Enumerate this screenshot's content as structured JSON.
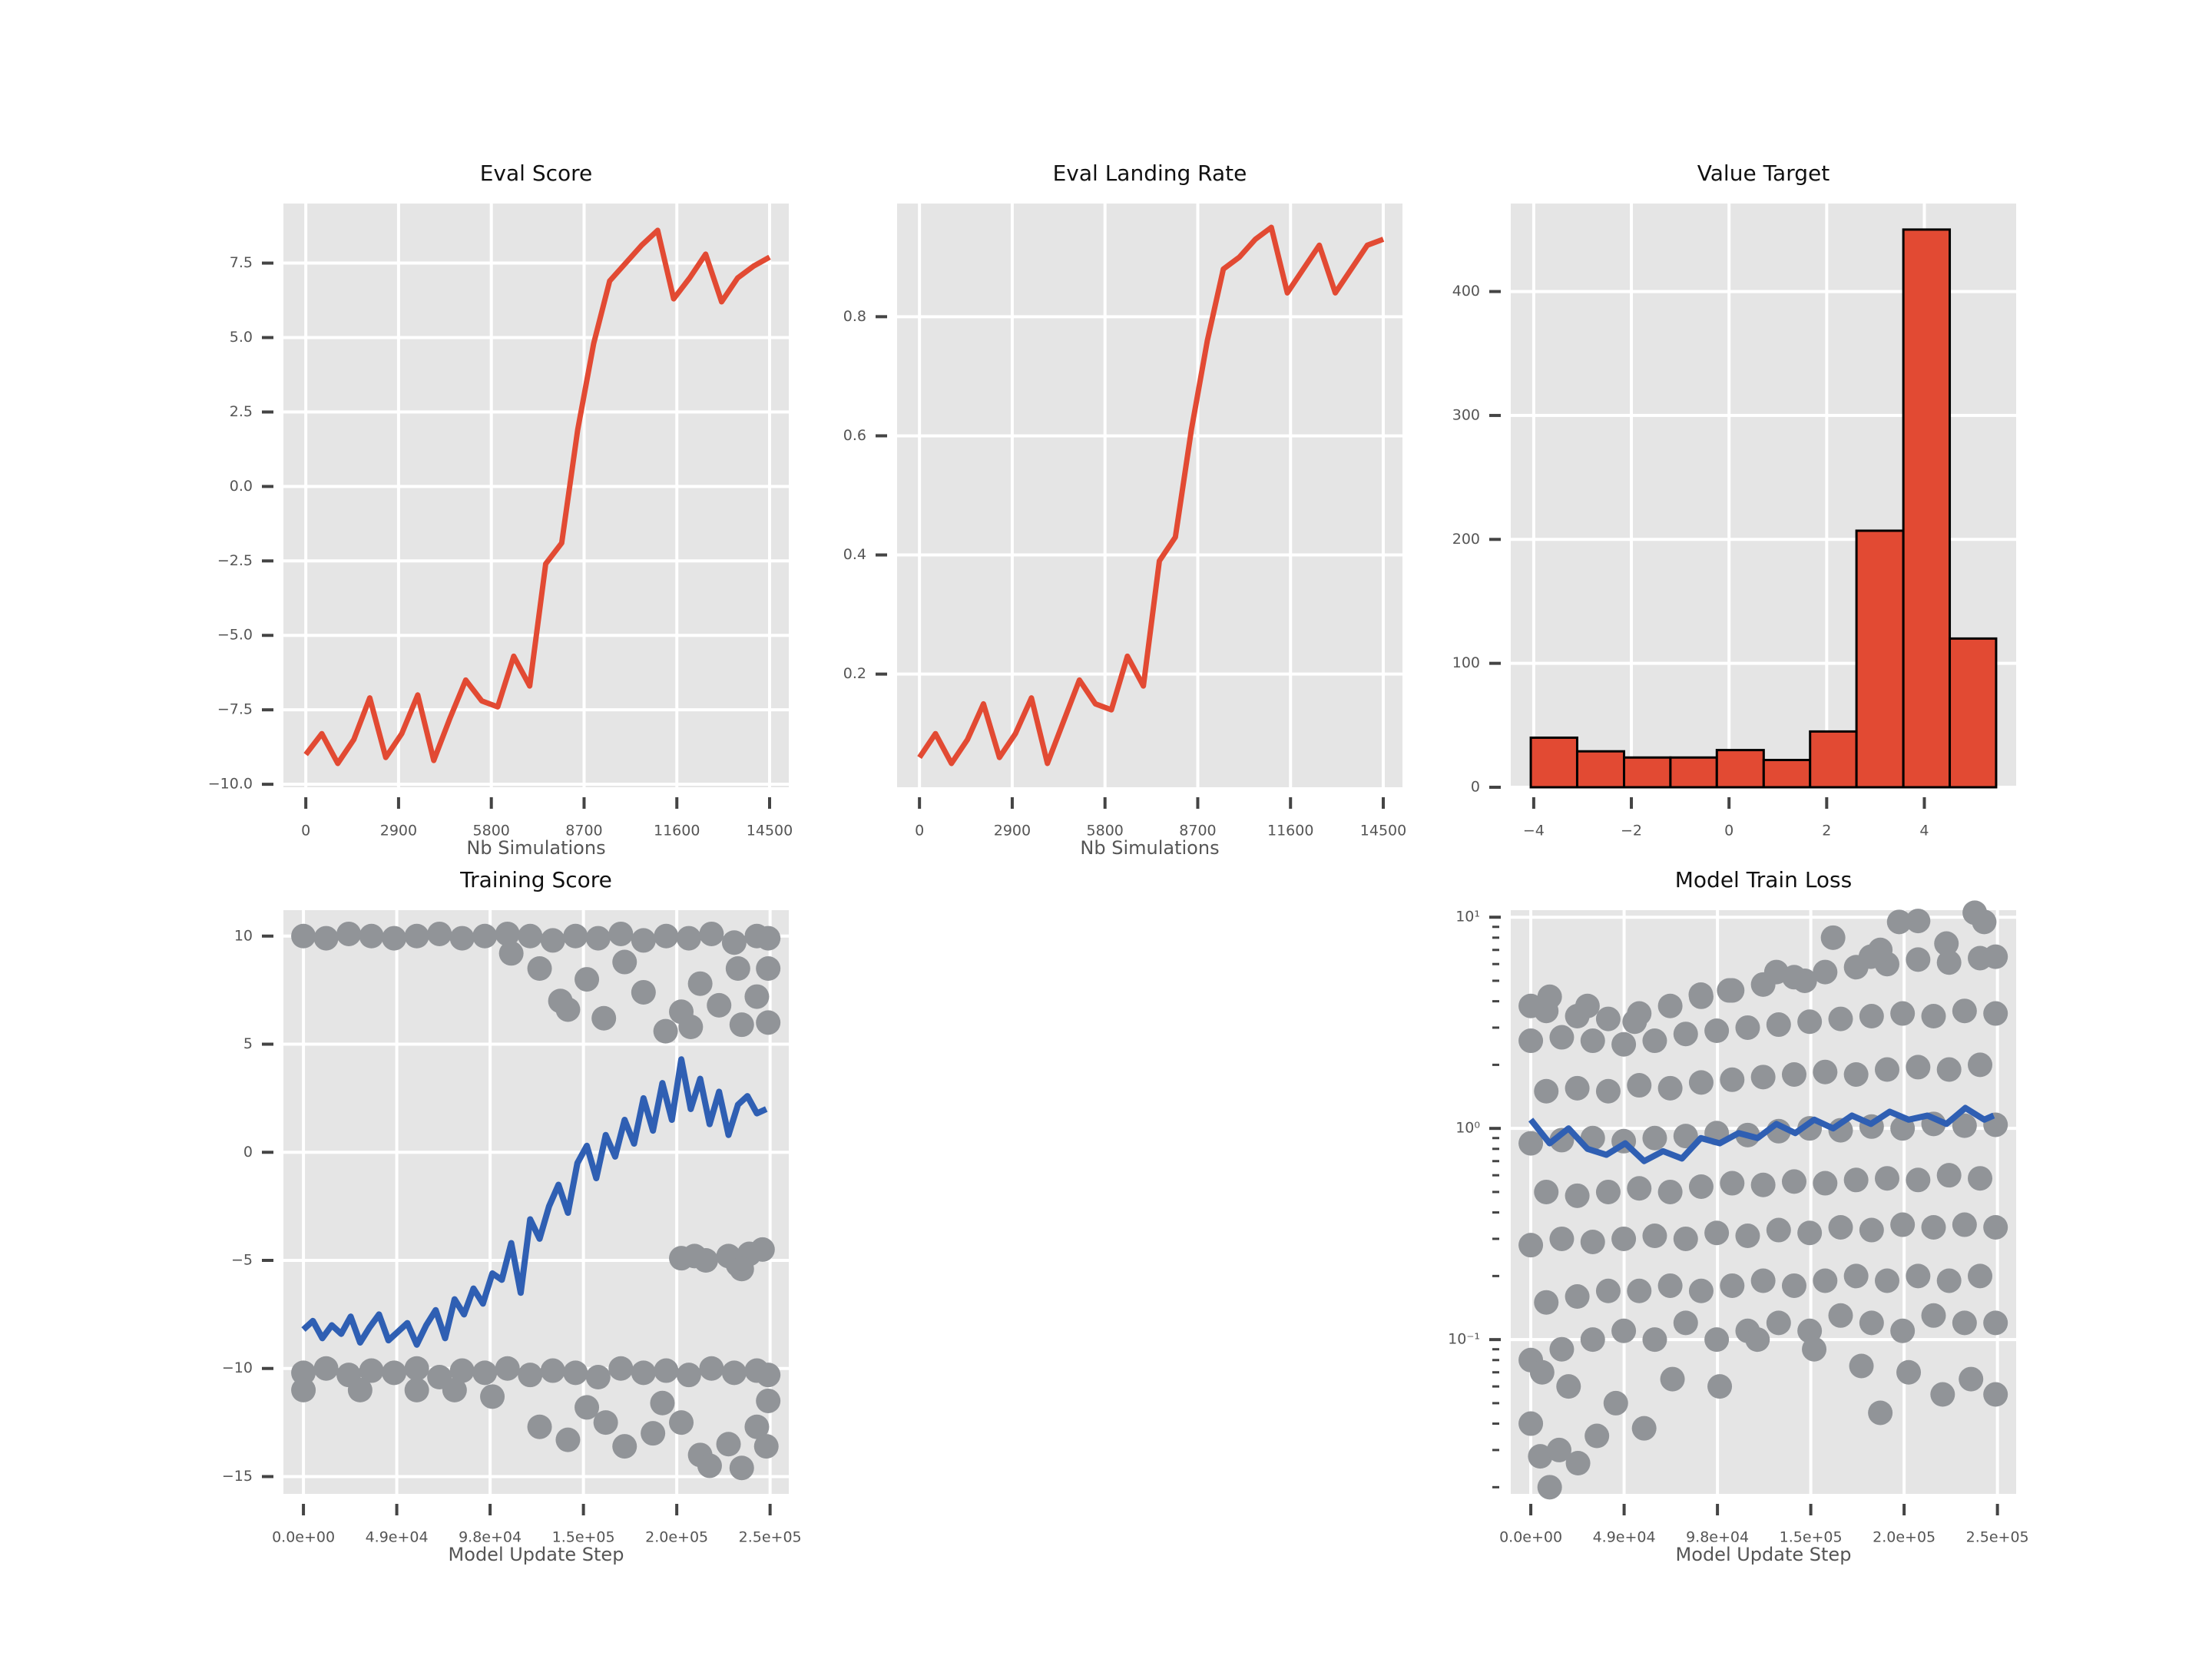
{
  "chart_data": [
    {
      "type": "line",
      "title": "Eval Score",
      "xlabel": "Nb Simulations",
      "color": "#e24a33",
      "grid": true,
      "x": [
        0,
        500,
        1000,
        1500,
        2000,
        2500,
        3000,
        3500,
        4000,
        4500,
        5000,
        5500,
        6000,
        6500,
        7000,
        7500,
        8000,
        8500,
        9000,
        9500,
        10000,
        10500,
        11000,
        11500,
        12000,
        12500,
        13000,
        13500,
        14000,
        14500
      ],
      "values": [
        -9.0,
        -8.3,
        -9.3,
        -8.5,
        -7.1,
        -9.1,
        -8.3,
        -7.0,
        -9.2,
        -7.8,
        -6.5,
        -7.2,
        -7.4,
        -5.7,
        -6.7,
        -2.6,
        -1.9,
        1.9,
        4.8,
        6.9,
        7.5,
        8.1,
        8.6,
        6.3,
        7.0,
        7.8,
        6.2,
        7.0,
        7.4,
        7.7
      ],
      "xlim": [
        -700,
        15100
      ],
      "ylim": [
        -10.1,
        9.5
      ],
      "xticks": [
        0,
        2900,
        5800,
        8700,
        11600,
        14500
      ],
      "yticks": [
        {
          "value": -10,
          "label": "−10.0"
        },
        {
          "value": -7.5,
          "label": "−7.5"
        },
        {
          "value": -5,
          "label": "−5.0"
        },
        {
          "value": -2.5,
          "label": "−2.5"
        },
        {
          "value": 0,
          "label": "0.0"
        },
        2.5,
        {
          "value": 5,
          "label": "5.0"
        },
        7.5
      ]
    },
    {
      "type": "line",
      "title": "Eval Landing Rate",
      "xlabel": "Nb Simulations",
      "color": "#e24a33",
      "grid": true,
      "x": [
        0,
        500,
        1000,
        1500,
        2000,
        2500,
        3000,
        3500,
        4000,
        4500,
        5000,
        5500,
        6000,
        6500,
        7000,
        7500,
        8000,
        8500,
        9000,
        9500,
        10000,
        10500,
        11000,
        11500,
        12000,
        12500,
        13000,
        13500,
        14000,
        14500
      ],
      "values": [
        0.06,
        0.1,
        0.05,
        0.09,
        0.15,
        0.06,
        0.1,
        0.16,
        0.05,
        0.12,
        0.19,
        0.15,
        0.14,
        0.23,
        0.18,
        0.39,
        0.43,
        0.61,
        0.76,
        0.88,
        0.9,
        0.93,
        0.95,
        0.84,
        0.88,
        0.92,
        0.84,
        0.88,
        0.92,
        0.93
      ],
      "xlim": [
        -700,
        15100
      ],
      "ylim": [
        0.01,
        0.99
      ],
      "xticks": [
        0,
        2900,
        5800,
        8700,
        11600,
        14500
      ],
      "yticks": [
        0.2,
        0.4,
        0.6,
        0.8
      ]
    },
    {
      "type": "histogram",
      "title": "Value Target",
      "color": "#e24a33",
      "edgecolor": "#000000",
      "grid": true,
      "bins": [
        -4.06,
        -3.11,
        -2.15,
        -1.2,
        -0.25,
        0.71,
        1.66,
        2.61,
        3.57,
        4.52,
        5.47
      ],
      "values": [
        40,
        29,
        24,
        24,
        30,
        22,
        45,
        207,
        450,
        120
      ],
      "xlim": [
        -4.47,
        5.88
      ],
      "ylim": [
        0,
        471
      ],
      "xticks": [
        {
          "value": -4,
          "label": "−4"
        },
        {
          "value": -2,
          "label": "−2"
        },
        0,
        2,
        4
      ],
      "yticks": [
        0,
        100,
        200,
        300,
        400
      ]
    },
    {
      "type": "scatter",
      "title": "Training Score",
      "xlabel": "Model Update Step",
      "grid": true,
      "series": [
        {
          "type": "scatter",
          "color": "#919498",
          "x": [
            0,
            12000,
            24000,
            36000,
            48000,
            60000,
            72000,
            84000,
            96000,
            108000,
            120000,
            132000,
            144000,
            156000,
            168000,
            180000,
            192000,
            204000,
            216000,
            228000,
            240000,
            246000,
            110000,
            125000,
            136000,
            150000,
            159000,
            170000,
            180000,
            191700,
            200000,
            210000,
            220000,
            230000,
            240000,
            246000,
            246000,
            140000,
            205000,
            232000,
            0,
            12000,
            24000,
            36000,
            48000,
            60000,
            72000,
            84000,
            96000,
            108000,
            120000,
            132000,
            144000,
            156000,
            168000,
            180000,
            192000,
            204000,
            216000,
            228000,
            240000,
            246000,
            0,
            30000,
            60000,
            80000,
            100000,
            125000,
            140000,
            150000,
            160000,
            170000,
            185000,
            190000,
            200000,
            210000,
            215000,
            225000,
            232000,
            240000,
            245000,
            246000,
            200000,
            207000,
            213000,
            225000,
            230000,
            236000,
            243000,
            232000
          ],
          "values": [
            10,
            9.9,
            10.1,
            10,
            9.9,
            10,
            10.1,
            9.9,
            10,
            10.1,
            10,
            9.8,
            10,
            9.9,
            10.1,
            9.8,
            10,
            9.9,
            10.1,
            9.7,
            10,
            9.9,
            9.2,
            8.5,
            7.0,
            8.0,
            6.2,
            8.8,
            7.4,
            5.6,
            6.5,
            7.8,
            6.8,
            8.5,
            7.2,
            6.0,
            8.5,
            6.6,
            5.8,
            5.9,
            -10.2,
            -10,
            -10.3,
            -10.1,
            -10.2,
            -10,
            -10.4,
            -10.1,
            -10.2,
            -10,
            -10.3,
            -10.1,
            -10.2,
            -10.4,
            -10,
            -10.2,
            -10.1,
            -10.3,
            -10,
            -10.2,
            -10.1,
            -10.3,
            -11,
            -11,
            -11,
            -11,
            -11.3,
            -12.7,
            -13.3,
            -11.8,
            -12.5,
            -13.6,
            -13,
            -11.6,
            -12.5,
            -14,
            -14.5,
            -13.5,
            -14.6,
            -12.7,
            -13.6,
            -11.5,
            -4.9,
            -4.8,
            -5.0,
            -4.8,
            -5.2,
            -4.7,
            -4.5,
            -5.4
          ]
        },
        {
          "type": "line",
          "color": "#2f5fb3",
          "x": [
            0,
            5000,
            10000,
            15000,
            20000,
            25000,
            30000,
            35000,
            40000,
            45000,
            50000,
            55000,
            60000,
            65000,
            70000,
            75000,
            80000,
            85000,
            90000,
            95000,
            100000,
            105000,
            110000,
            115000,
            120000,
            125000,
            130000,
            135000,
            140000,
            145000,
            150000,
            155000,
            160000,
            165000,
            170000,
            175000,
            180000,
            185000,
            190000,
            195000,
            200000,
            205000,
            210000,
            215000,
            220000,
            225000,
            230000,
            235000,
            240000,
            245000
          ],
          "values": [
            -8.2,
            -7.8,
            -8.6,
            -8.0,
            -8.4,
            -7.6,
            -8.8,
            -8.1,
            -7.5,
            -8.7,
            -8.3,
            -7.9,
            -8.9,
            -8.0,
            -7.3,
            -8.6,
            -6.8,
            -7.5,
            -6.3,
            -7.0,
            -5.6,
            -5.9,
            -4.2,
            -6.5,
            -3.1,
            -4.0,
            -2.5,
            -1.5,
            -2.8,
            -0.5,
            0.3,
            -1.2,
            0.8,
            -0.2,
            1.5,
            0.4,
            2.5,
            1.0,
            3.2,
            1.5,
            4.3,
            2.0,
            3.4,
            1.3,
            2.8,
            0.8,
            2.2,
            2.6,
            1.8,
            2.0
          ]
        }
      ],
      "xlim": [
        -10600,
        256900
      ],
      "ylim": [
        -15.8,
        11.2
      ],
      "xticks": [
        {
          "value": 0,
          "label": "0.0e+00"
        },
        {
          "value": 49400,
          "label": "4.9e+04"
        },
        {
          "value": 98800,
          "label": "9.8e+04"
        },
        {
          "value": 148200,
          "label": "1.5e+05"
        },
        {
          "value": 197600,
          "label": "2.0e+05"
        },
        {
          "value": 247000,
          "label": "2.5e+05"
        }
      ],
      "yticks": [
        {
          "value": -15,
          "label": "−15"
        },
        {
          "value": -10,
          "label": "−10"
        },
        {
          "value": -5,
          "label": "−5"
        },
        0,
        5,
        10
      ]
    },
    {
      "type": "scatter",
      "title": "Model Train Loss",
      "xlabel": "Model Update Step",
      "grid": true,
      "ylog": true,
      "series": [
        {
          "type": "scatter",
          "color": "#919498",
          "x": [
            0,
            16400,
            32800,
            49200,
            65600,
            82000,
            98400,
            114800,
            131200,
            147600,
            164000,
            180400,
            196800,
            213200,
            229600,
            246000,
            8200,
            24600,
            41000,
            57400,
            73800,
            90200,
            106600,
            123000,
            139400,
            155800,
            172200,
            188600,
            205000,
            221400,
            237800,
            0,
            16400,
            32800,
            49200,
            65600,
            82000,
            98400,
            114800,
            131200,
            147600,
            164000,
            180400,
            196800,
            213200,
            229600,
            246000,
            8200,
            24600,
            41000,
            57400,
            73800,
            90200,
            106600,
            123000,
            139400,
            155800,
            172200,
            188600,
            205000,
            221400,
            237800,
            0,
            16400,
            32800,
            49200,
            65600,
            82000,
            98400,
            114800,
            131200,
            147600,
            164000,
            180400,
            196800,
            213200,
            229600,
            246000,
            8200,
            24600,
            41000,
            57400,
            73800,
            90200,
            106600,
            123000,
            139400,
            155800,
            172200,
            188600,
            205000,
            221400,
            237800,
            0,
            16400,
            32800,
            49200,
            65600,
            82000,
            98400,
            114800,
            131200,
            147600,
            164000,
            180400,
            196800,
            213200,
            229600,
            246000,
            8200,
            24600,
            41000,
            57400,
            73800,
            90200,
            106600,
            123000,
            139400,
            155800,
            172200,
            188600,
            205000,
            221400,
            237800,
            0,
            5000,
            10000,
            15000,
            25000,
            35000,
            45000,
            60000,
            75000,
            100000,
            150000,
            185000,
            175000,
            200000,
            218000,
            233000,
            246000,
            120000,
            6000,
            20000,
            0,
            10000,
            30000,
            55000,
            90000,
            105000,
            130000,
            145000,
            160000,
            180000,
            195000,
            205000,
            220000,
            235000,
            240000,
            246000,
            185000
          ],
          "values": [
            0.08,
            0.09,
            0.1,
            0.11,
            0.1,
            0.12,
            0.1,
            0.11,
            0.12,
            0.11,
            0.13,
            0.12,
            0.11,
            0.13,
            0.12,
            0.12,
            0.15,
            0.16,
            0.17,
            0.17,
            0.18,
            0.17,
            0.18,
            0.19,
            0.18,
            0.19,
            0.2,
            0.19,
            0.2,
            0.19,
            0.2,
            0.28,
            0.3,
            0.29,
            0.3,
            0.31,
            0.3,
            0.32,
            0.31,
            0.33,
            0.32,
            0.34,
            0.33,
            0.35,
            0.34,
            0.35,
            0.34,
            0.5,
            0.48,
            0.5,
            0.52,
            0.5,
            0.53,
            0.55,
            0.54,
            0.56,
            0.55,
            0.57,
            0.58,
            0.57,
            0.6,
            0.58,
            0.85,
            0.88,
            0.9,
            0.87,
            0.9,
            0.92,
            0.95,
            0.93,
            0.97,
            1.0,
            0.98,
            1.02,
            1.0,
            1.05,
            1.03,
            1.04,
            1.5,
            1.55,
            1.5,
            1.6,
            1.55,
            1.65,
            1.7,
            1.75,
            1.8,
            1.85,
            1.8,
            1.9,
            1.95,
            1.9,
            2.0,
            2.6,
            2.7,
            2.6,
            2.5,
            2.6,
            2.8,
            2.9,
            3.0,
            3.1,
            3.2,
            3.3,
            3.4,
            3.5,
            3.4,
            3.6,
            3.5,
            3.6,
            3.4,
            3.3,
            3.5,
            3.8,
            4.2,
            4.5,
            4.8,
            5.2,
            5.5,
            5.8,
            6.0,
            6.3,
            6.1,
            6.4,
            0.04,
            0.028,
            0.02,
            0.03,
            0.026,
            0.035,
            0.05,
            0.038,
            0.065,
            0.06,
            0.09,
            0.045,
            0.075,
            0.07,
            0.055,
            0.065,
            0.055,
            0.1,
            0.07,
            0.06,
            3.8,
            4.2,
            3.8,
            3.2,
            4.3,
            4.5,
            5.5,
            5.0,
            8.0,
            6.5,
            9.5,
            9.6,
            7.5,
            10.5,
            9.5,
            6.5,
            7.0
          ]
        },
        {
          "type": "line",
          "color": "#2f5fb3",
          "x": [
            0,
            10000,
            20000,
            30000,
            40000,
            50000,
            60000,
            70000,
            80000,
            90000,
            100000,
            110000,
            120000,
            130000,
            140000,
            150000,
            160000,
            170000,
            180000,
            190000,
            200000,
            210000,
            220000,
            230000,
            240000,
            245000
          ],
          "values": [
            1.1,
            0.85,
            1.0,
            0.8,
            0.75,
            0.85,
            0.7,
            0.78,
            0.72,
            0.9,
            0.85,
            0.95,
            0.9,
            1.05,
            0.95,
            1.1,
            1.0,
            1.15,
            1.05,
            1.2,
            1.1,
            1.15,
            1.05,
            1.25,
            1.1,
            1.15
          ]
        }
      ],
      "xlim": [
        -10600,
        256900
      ],
      "ylim": [
        0.0186,
        10.8
      ],
      "xticks": [
        {
          "value": 0,
          "label": "0.0e+00"
        },
        {
          "value": 49400,
          "label": "4.9e+04"
        },
        {
          "value": 98800,
          "label": "9.8e+04"
        },
        {
          "value": 148200,
          "label": "1.5e+05"
        },
        {
          "value": 197600,
          "label": "2.0e+05"
        },
        {
          "value": 247000,
          "label": "2.5e+05"
        }
      ],
      "yticks": [
        {
          "value": 0.1,
          "label": "10⁻¹"
        },
        {
          "value": 1,
          "label": "10⁰"
        },
        {
          "value": 10,
          "label": "10¹"
        }
      ],
      "yminorticks": [
        0.02,
        0.03,
        0.04,
        0.05,
        0.06,
        0.07,
        0.08,
        0.09,
        0.2,
        0.3,
        0.4,
        0.5,
        0.6,
        0.7,
        0.8,
        0.9,
        2,
        3,
        4,
        5,
        6,
        7,
        8,
        9
      ]
    }
  ]
}
